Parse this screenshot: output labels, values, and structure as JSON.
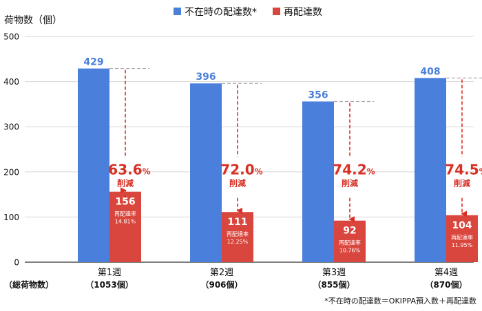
{
  "chart_data": {
    "type": "bar",
    "ylabel": "荷物数（個）",
    "ylim": [
      0,
      500
    ],
    "yticks": [
      0,
      100,
      200,
      300,
      400,
      500
    ],
    "grid": true,
    "legend_position": "top",
    "colors": {
      "absent": "#4a7fdc",
      "redelivery": "#d9463d",
      "arrow": "#d93025",
      "text": "#111111",
      "grid": "#d6d6d6"
    },
    "categories": [
      "第1週",
      "第2週",
      "第3週",
      "第4週"
    ],
    "totals_label": "（総荷物数）",
    "totals": [
      "（1053個）",
      "（906個）",
      "（855個）",
      "（870個）"
    ],
    "series": [
      {
        "name": "不在時の配達数*",
        "values": [
          429,
          396,
          356,
          408
        ]
      },
      {
        "name": "再配達数",
        "values": [
          156,
          111,
          92,
          104
        ]
      }
    ],
    "redelivery_rate_label": "再配達率",
    "redelivery_rates": [
      "14.81%",
      "12.25%",
      "10.76%",
      "11.95%"
    ],
    "reduction_numbers": [
      "63.6",
      "72.0",
      "74.2",
      "74.5"
    ],
    "reduction_unit": "%",
    "reduction_label": "削減",
    "footnote": "*不在時の配達数＝OKIPPA預入数＋再配達数"
  }
}
